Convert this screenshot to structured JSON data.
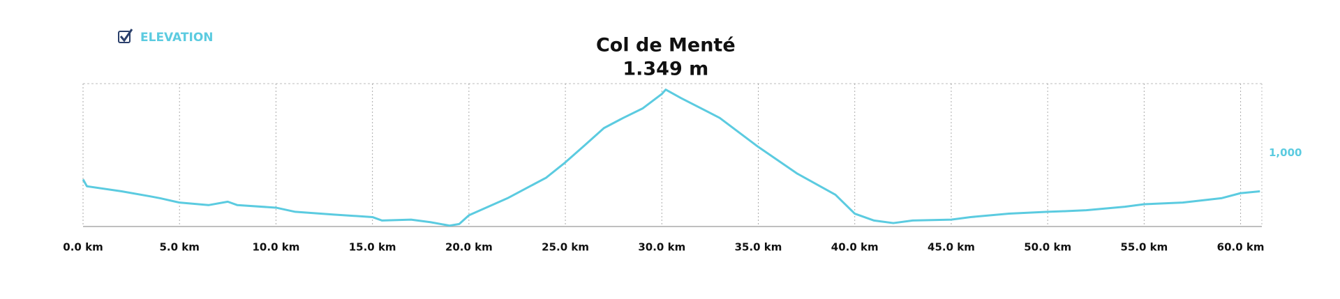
{
  "chart_data": {
    "type": "line",
    "annotations": [
      "Col de Menté",
      "1.349 m"
    ],
    "x": [
      0,
      0.2,
      2,
      3.5,
      4,
      5,
      6.5,
      7.5,
      8,
      10,
      11,
      13,
      15,
      15.5,
      17,
      18,
      19,
      19.5,
      20,
      22,
      24,
      25,
      26,
      27,
      28,
      29,
      30,
      30.2,
      31,
      33,
      35,
      37,
      39,
      40,
      41,
      42,
      43,
      45,
      46,
      48,
      50,
      51,
      52,
      54,
      55,
      57,
      59,
      60,
      61
    ],
    "series": [
      {
        "name": "ELEVATION",
        "color": "#5bcbe0",
        "values": [
          854,
          816,
          788,
          760,
          750,
          726,
          712,
          731,
          712,
          698,
          675,
          660,
          646,
          627,
          632,
          618,
          599,
          608,
          656,
          750,
          863,
          948,
          1042,
          1137,
          1193,
          1245,
          1325,
          1349,
          1302,
          1193,
          1033,
          887,
          769,
          665,
          627,
          613,
          627,
          632,
          646,
          665,
          675,
          679,
          684,
          703,
          717,
          726,
          750,
          778,
          788
        ]
      }
    ],
    "xlim": [
      0,
      61.1
    ],
    "xticks": [
      {
        "value": 0,
        "label": "0.0 km"
      },
      {
        "value": 5,
        "label": "5.0 km"
      },
      {
        "value": 10,
        "label": "10.0 km"
      },
      {
        "value": 15,
        "label": "15.0 km"
      },
      {
        "value": 20,
        "label": "20.0 km"
      },
      {
        "value": 25,
        "label": "25.0 km"
      },
      {
        "value": 30,
        "label": "30.0 km"
      },
      {
        "value": 35,
        "label": "35.0 km"
      },
      {
        "value": 40,
        "label": "40.0 km"
      },
      {
        "value": 45,
        "label": "45.0 km"
      },
      {
        "value": 50,
        "label": "50.0 km"
      },
      {
        "value": 55,
        "label": "55.0 km"
      },
      {
        "value": 60,
        "label": "60.0 km"
      }
    ],
    "ylim": [
      594,
      1382
    ],
    "yticks": [
      {
        "value": 1000,
        "label": "1,000"
      }
    ],
    "grid": true
  }
}
